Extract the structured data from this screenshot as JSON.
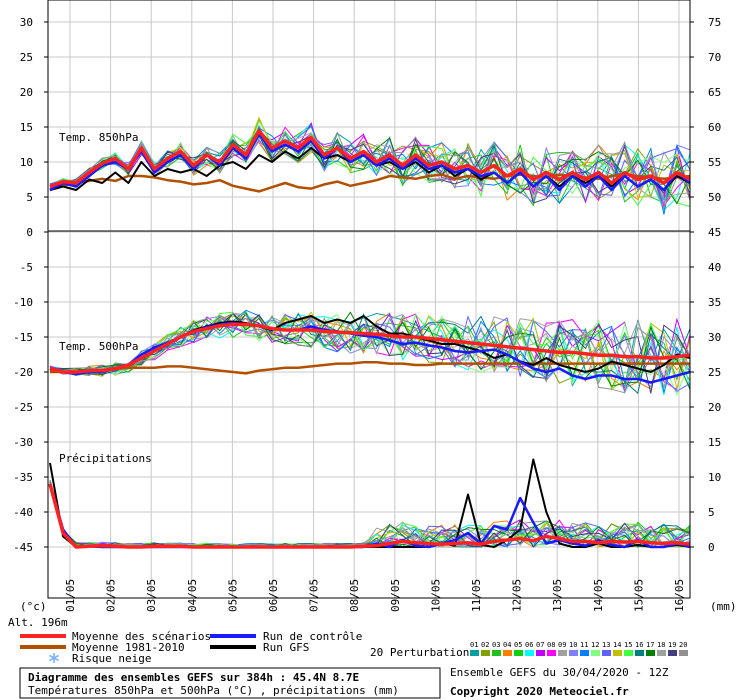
{
  "chart_data": {
    "type": "line",
    "axes": {
      "left_ticks": [
        30,
        25,
        20,
        15,
        10,
        5,
        0,
        -5,
        -10,
        -15,
        -20,
        -25,
        -30,
        -35,
        -40,
        -45
      ],
      "right_ticks_upper": [
        75,
        70,
        65,
        60,
        55,
        50
      ],
      "right_ticks_lower": [
        45,
        40,
        35,
        30,
        25,
        20,
        15,
        10,
        5,
        0
      ],
      "left_unit": "(°c)",
      "right_unit": "(mm)",
      "altitude": "Alt. 196m",
      "x_ticks": [
        "01/05",
        "02/05",
        "03/05",
        "04/05",
        "05/05",
        "06/05",
        "07/05",
        "08/05",
        "09/05",
        "10/05",
        "11/05",
        "12/05",
        "13/05",
        "14/05",
        "15/05",
        "16/05"
      ]
    },
    "panels": [
      {
        "label": "Temp. 850hPa",
        "mean": [
          6.5,
          7.2,
          7.0,
          8.5,
          9.8,
          10.5,
          9.0,
          12.0,
          9.0,
          10.5,
          11.5,
          9.5,
          11.0,
          10.0,
          12.5,
          11.0,
          14.5,
          12.0,
          13.0,
          12.0,
          13.5,
          11.0,
          12.0,
          10.5,
          11.5,
          10.0,
          11.0,
          9.5,
          11.0,
          9.5,
          10.0,
          9.0,
          9.5,
          8.5,
          9.5,
          8.0,
          9.0,
          7.5,
          8.5,
          7.5,
          8.5,
          7.5,
          8.5,
          7.0,
          8.5,
          7.5,
          8.0,
          7.0,
          8.5,
          7.5
        ],
        "control": [
          6.0,
          7.0,
          6.5,
          8.0,
          9.5,
          10.0,
          9.0,
          11.5,
          8.5,
          10.0,
          11.0,
          9.0,
          11.0,
          9.5,
          12.0,
          10.5,
          14.0,
          11.5,
          12.5,
          11.5,
          13.0,
          10.5,
          12.0,
          10.0,
          11.0,
          9.5,
          10.5,
          9.0,
          10.5,
          9.0,
          9.5,
          8.5,
          9.0,
          8.0,
          8.5,
          7.0,
          8.5,
          6.5,
          8.0,
          6.0,
          8.0,
          6.5,
          8.0,
          6.0,
          8.0,
          6.5,
          7.5,
          6.0,
          8.5,
          7.0
        ],
        "gfs": [
          6.0,
          6.5,
          6.0,
          7.5,
          7.0,
          8.5,
          7.0,
          10.0,
          8.0,
          9.0,
          8.5,
          9.0,
          8.0,
          9.5,
          10.0,
          9.0,
          11.0,
          10.0,
          11.5,
          10.5,
          12.0,
          10.5,
          11.0,
          10.0,
          11.0,
          9.5,
          10.0,
          9.0,
          10.0,
          8.5,
          9.5,
          8.0,
          9.0,
          7.5,
          8.5,
          7.0,
          8.5,
          6.5,
          8.0,
          6.5,
          8.0,
          7.0,
          8.0,
          6.5,
          8.0,
          6.5,
          7.5,
          6.0,
          8.0,
          7.0
        ],
        "climatology": [
          6.0,
          6.6,
          7.0,
          7.3,
          7.6,
          7.3,
          8.0,
          8.0,
          7.8,
          7.4,
          7.2,
          6.8,
          7.0,
          7.4,
          6.6,
          6.2,
          5.8,
          6.4,
          7.0,
          6.4,
          6.2,
          6.8,
          7.2,
          6.6,
          7.0,
          7.4,
          8.0,
          7.8,
          7.6,
          8.0,
          8.2,
          7.6,
          8.0,
          7.8,
          7.6,
          8.0,
          8.2,
          8.0,
          7.8,
          8.2,
          8.0,
          7.8,
          7.6,
          8.0,
          8.2,
          8.0,
          7.8,
          7.6,
          7.8,
          8.0
        ]
      },
      {
        "label": "Temp. 500hPa",
        "mean": [
          -19.5,
          -20.0,
          -20.0,
          -19.8,
          -19.8,
          -19.5,
          -19.0,
          -18.0,
          -17.0,
          -16.0,
          -15.0,
          -14.2,
          -13.8,
          -13.4,
          -13.2,
          -13.2,
          -13.4,
          -13.8,
          -14.0,
          -14.0,
          -14.0,
          -14.2,
          -14.3,
          -14.4,
          -14.5,
          -14.6,
          -14.8,
          -15.0,
          -15.0,
          -15.2,
          -15.4,
          -15.6,
          -15.8,
          -16.0,
          -16.2,
          -16.4,
          -16.6,
          -16.8,
          -17.0,
          -17.2,
          -17.2,
          -17.4,
          -17.6,
          -17.6,
          -17.8,
          -17.8,
          -18.0,
          -18.0,
          -17.8,
          -17.6
        ],
        "control": [
          -19.5,
          -20.0,
          -20.3,
          -20.0,
          -20.0,
          -19.5,
          -19.0,
          -17.5,
          -16.5,
          -15.8,
          -15.0,
          -14.2,
          -13.6,
          -13.2,
          -13.0,
          -13.2,
          -13.4,
          -13.8,
          -14.0,
          -14.0,
          -13.5,
          -14.0,
          -14.2,
          -14.5,
          -14.8,
          -15.0,
          -15.5,
          -16.0,
          -15.8,
          -16.2,
          -16.5,
          -17.0,
          -17.2,
          -17.0,
          -16.8,
          -17.5,
          -18.5,
          -19.5,
          -20.0,
          -19.5,
          -20.5,
          -21.0,
          -20.5,
          -20.5,
          -21.0,
          -21.0,
          -21.5,
          -21.0,
          -20.5,
          -20.0
        ],
        "gfs": [
          -19.5,
          -20.0,
          -20.0,
          -20.0,
          -19.8,
          -19.5,
          -19.0,
          -18.0,
          -17.0,
          -16.0,
          -15.0,
          -14.0,
          -13.5,
          -13.0,
          -12.8,
          -13.0,
          -13.5,
          -14.0,
          -13.0,
          -12.5,
          -12.0,
          -13.0,
          -12.5,
          -13.0,
          -12.0,
          -13.5,
          -14.5,
          -14.5,
          -15.0,
          -15.5,
          -16.0,
          -16.0,
          -16.5,
          -17.0,
          -18.0,
          -17.5,
          -18.5,
          -19.0,
          -18.0,
          -19.0,
          -19.5,
          -20.0,
          -19.5,
          -18.5,
          -19.0,
          -19.5,
          -20.0,
          -19.0,
          -17.5,
          -18.0
        ],
        "climatology": [
          -20.0,
          -20.0,
          -20.0,
          -19.8,
          -19.8,
          -19.6,
          -19.4,
          -19.4,
          -19.4,
          -19.2,
          -19.2,
          -19.4,
          -19.6,
          -19.8,
          -20.0,
          -20.2,
          -19.8,
          -19.6,
          -19.4,
          -19.4,
          -19.2,
          -19.0,
          -18.8,
          -18.8,
          -18.6,
          -18.6,
          -18.8,
          -18.8,
          -19.0,
          -19.0,
          -18.8,
          -18.8,
          -18.8,
          -18.8,
          -18.8,
          -18.8,
          -18.8,
          -18.8,
          -18.8,
          -18.8,
          -18.8,
          -18.8,
          -18.8,
          -18.8,
          -18.8,
          -18.8,
          -18.8,
          -18.8,
          -18.8,
          -18.8
        ]
      },
      {
        "label": "Précipitations",
        "mean": [
          9.0,
          2.0,
          0.0,
          0.1,
          0.2,
          0.1,
          0.0,
          0.0,
          0.1,
          0.1,
          0.1,
          0.0,
          0.0,
          0.0,
          0.0,
          0.0,
          0.0,
          0.0,
          0.0,
          0.0,
          0.0,
          0.0,
          0.0,
          0.0,
          0.1,
          0.2,
          0.5,
          0.8,
          0.6,
          0.5,
          0.4,
          0.5,
          0.6,
          0.4,
          0.8,
          1.0,
          1.2,
          0.9,
          1.5,
          1.2,
          0.8,
          0.8,
          0.6,
          0.8,
          0.7,
          0.8,
          0.6,
          0.5,
          0.6,
          0.4
        ],
        "control": [
          9.0,
          2.5,
          0.0,
          0.1,
          0.0,
          0.0,
          0.0,
          0.0,
          0.0,
          0.0,
          0.0,
          0.0,
          0.0,
          0.0,
          0.0,
          0.0,
          0.0,
          0.0,
          0.0,
          0.0,
          0.0,
          0.0,
          0.0,
          0.0,
          0.0,
          0.5,
          0.0,
          1.0,
          0.2,
          0.0,
          0.5,
          1.0,
          2.0,
          0.5,
          3.0,
          2.5,
          7.0,
          3.5,
          0.5,
          1.0,
          0.5,
          0.2,
          1.0,
          0.3,
          0.0,
          1.0,
          0.0,
          0.0,
          0.5,
          0.0
        ],
        "gfs": [
          12.0,
          1.5,
          0.0,
          0.1,
          0.0,
          0.0,
          0.0,
          0.0,
          0.0,
          0.0,
          0.0,
          0.0,
          0.0,
          0.0,
          0.0,
          0.0,
          0.0,
          0.0,
          0.0,
          0.0,
          0.0,
          0.0,
          0.0,
          0.0,
          0.0,
          0.0,
          0.0,
          0.0,
          0.0,
          0.0,
          0.5,
          0.2,
          7.5,
          0.3,
          0.0,
          1.0,
          2.5,
          12.5,
          5.0,
          0.5,
          0.0,
          0.0,
          0.5,
          0.0,
          0.0,
          0.3,
          0.0,
          0.0,
          0.3,
          0.0
        ]
      }
    ],
    "legend": [
      {
        "name": "Moyenne des scénarios",
        "color": "#ff2222"
      },
      {
        "name": "Run de contrôle",
        "color": "#1a1aff"
      },
      {
        "name": "Moyenne 1981-2010",
        "color": "#b35000"
      },
      {
        "name": "Run GFS",
        "color": "#000000"
      },
      {
        "name": "Risque neige",
        "color": "#7fb2ff"
      }
    ],
    "perturbations": {
      "label": "20 Perturbations",
      "numbers": [
        "01",
        "02",
        "03",
        "04",
        "05",
        "06",
        "07",
        "08",
        "09",
        "10",
        "11",
        "12",
        "13",
        "14",
        "15",
        "16",
        "17",
        "18",
        "19",
        "20"
      ],
      "colors": [
        "#00a0a0",
        "#80a000",
        "#20c020",
        "#ff8000",
        "#10d010",
        "#00ffff",
        "#c000ff",
        "#ff00ff",
        "#a0a0a0",
        "#8080ff",
        "#0080ff",
        "#80ff80",
        "#6060ff",
        "#c0c000",
        "#40ff40",
        "#008080",
        "#008000",
        "#a0a0a0",
        "#404080",
        "#909090"
      ]
    }
  },
  "footer": {
    "title": "Diagramme des ensembles GEFS sur 384h : 45.4N 8.7E",
    "subtitle": "Températures 850hPa et 500hPa (°C) , précipitations (mm)",
    "run_info": "Ensemble GEFS du 30/04/2020 - 12Z",
    "copyright": "Copyright 2020 Meteociel.fr"
  }
}
